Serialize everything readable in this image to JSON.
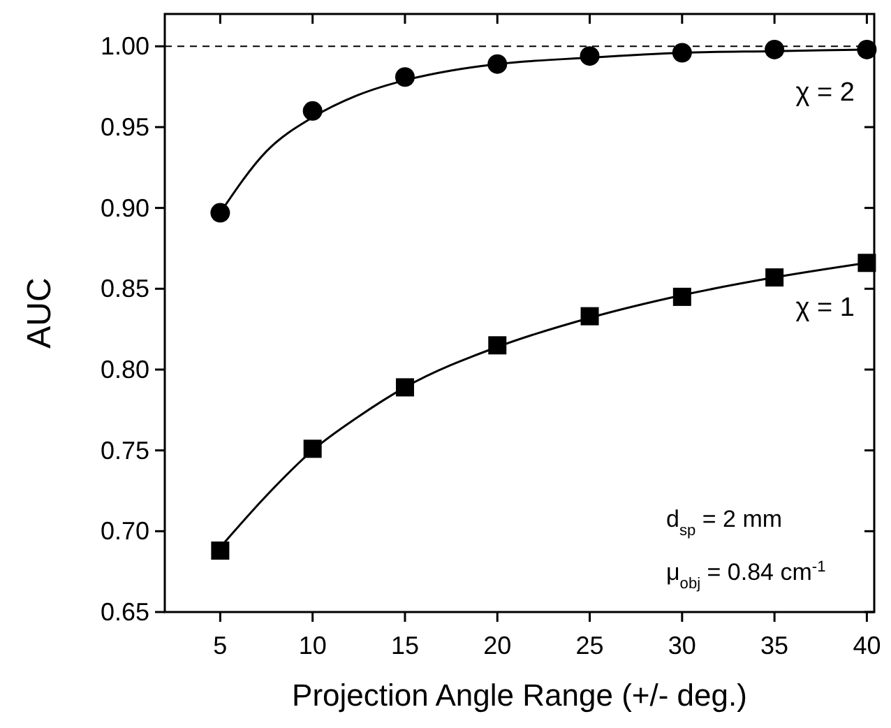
{
  "chart_data": {
    "type": "scatter",
    "xlabel": "Projection Angle Range (+/- deg.)",
    "ylabel": "AUC",
    "xlim": [
      2,
      40.4
    ],
    "xticks": [
      5,
      10,
      15,
      20,
      25,
      30,
      35,
      40
    ],
    "ylim": [
      0.65,
      1.02
    ],
    "yticks": [
      {
        "value": 0.65,
        "label": "0.65"
      },
      {
        "value": 0.7,
        "label": "0.70"
      },
      {
        "value": 0.75,
        "label": "0.75"
      },
      {
        "value": 0.8,
        "label": "0.80"
      },
      {
        "value": 0.85,
        "label": "0.85"
      },
      {
        "value": 0.9,
        "label": "0.90"
      },
      {
        "value": 0.95,
        "label": "0.95"
      },
      {
        "value": 1.0,
        "label": "1.00"
      }
    ],
    "grid": false,
    "series": [
      {
        "type": "line",
        "color": "#000000",
        "marker": "none",
        "line_style": "solid",
        "x": [
          5,
          7.5,
          10,
          12.5,
          15,
          17.5,
          20,
          25,
          30,
          35,
          40
        ],
        "values": [
          0.897,
          0.935,
          0.956,
          0.97,
          0.979,
          0.985,
          0.989,
          0.993,
          0.996,
          0.997,
          0.998
        ]
      },
      {
        "type": "line",
        "color": "#000000",
        "marker": "none",
        "line_style": "solid",
        "x": [
          5,
          7.5,
          10,
          12.5,
          15,
          20,
          25,
          30,
          35,
          40
        ],
        "values": [
          0.69,
          0.722,
          0.75,
          0.771,
          0.789,
          0.814,
          0.832,
          0.846,
          0.857,
          0.866
        ]
      },
      {
        "color": "#000000",
        "marker": "circle",
        "x": [
          5,
          10,
          15,
          20,
          25,
          30,
          35,
          40
        ],
        "values": [
          0.897,
          0.96,
          0.981,
          0.989,
          0.994,
          0.996,
          0.998,
          0.998
        ]
      },
      {
        "color": "#000000",
        "marker": "square",
        "x": [
          5,
          10,
          15,
          20,
          25,
          30,
          35,
          40
        ],
        "values": [
          0.688,
          0.751,
          0.789,
          0.815,
          0.833,
          0.845,
          0.857,
          0.866
        ]
      }
    ],
    "ref_lines": [
      {
        "axis": "y",
        "value": 1.0,
        "line_style": "dashed",
        "color": "#000000"
      }
    ],
    "annotations": [
      "χ = 2",
      "χ = 1",
      "d$_{sp}$ = 2 mm",
      "μ$_{obj}$ = 0.84 cm$^{-1}$"
    ]
  }
}
